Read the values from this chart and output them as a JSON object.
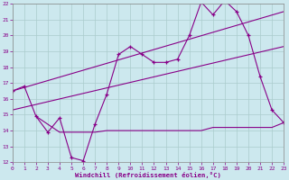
{
  "xlabel": "Windchill (Refroidissement éolien,°C)",
  "background_color": "#cce8ee",
  "grid_color": "#aacccc",
  "line_color": "#880088",
  "xmin": 0,
  "xmax": 23,
  "ymin": 12,
  "ymax": 22,
  "line1_x": [
    0,
    1,
    2,
    3,
    4,
    5,
    6,
    7,
    8,
    9,
    10,
    11,
    12,
    13,
    14,
    15,
    16,
    17,
    18,
    19,
    20,
    21,
    22,
    23
  ],
  "line1_y": [
    16.5,
    16.8,
    14.9,
    13.9,
    14.8,
    12.3,
    12.1,
    14.4,
    16.3,
    18.8,
    19.3,
    18.8,
    18.3,
    18.3,
    18.5,
    20.0,
    22.1,
    21.3,
    22.2,
    21.5,
    20.0,
    17.4,
    15.3,
    14.5
  ],
  "line2_x": [
    0,
    23
  ],
  "line2_y": [
    16.5,
    21.5
  ],
  "line3_x": [
    0,
    23
  ],
  "line3_y": [
    15.3,
    19.3
  ],
  "line4_x": [
    2,
    4,
    5,
    6,
    7,
    8,
    9,
    10,
    14,
    15,
    16,
    17,
    18,
    19,
    20,
    21,
    22,
    23
  ],
  "line4_y": [
    14.9,
    13.9,
    13.9,
    13.9,
    13.9,
    14.0,
    14.0,
    14.0,
    14.0,
    14.0,
    14.0,
    14.2,
    14.2,
    14.2,
    14.2,
    14.2,
    14.2,
    14.5
  ]
}
